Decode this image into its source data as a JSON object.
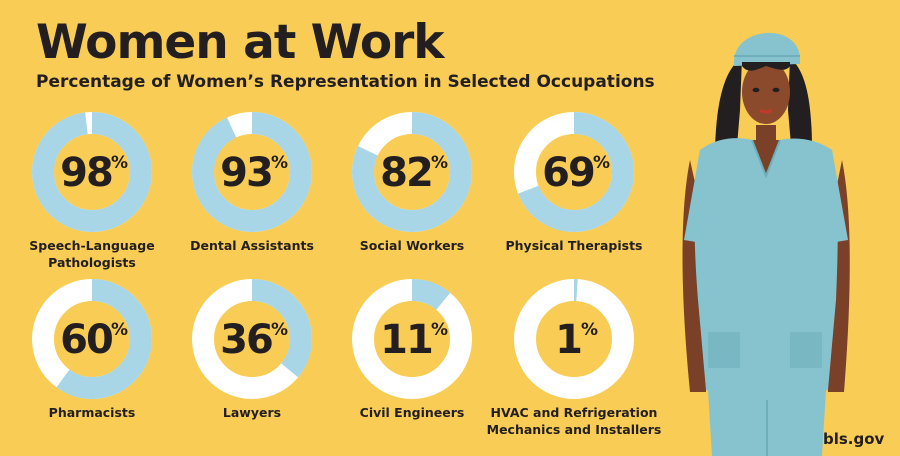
{
  "header": {
    "title": "Women at Work",
    "subtitle": "Percentage of Women’s Representation in Selected Occupations"
  },
  "chart_data": {
    "type": "donut",
    "title": "Women at Work",
    "subtitle": "Percentage of Women’s Representation in Selected Occupations",
    "unit": "%",
    "categories": [
      "Speech-Language Pathologists",
      "Dental Assistants",
      "Social Workers",
      "Physical Therapists",
      "Pharmacists",
      "Lawyers",
      "Civil Engineers",
      "HVAC and Refrigeration Mechanics and Installers"
    ],
    "label_lines": [
      [
        "Speech-Language",
        "Pathologists"
      ],
      [
        "Dental Assistants"
      ],
      [
        "Social Workers"
      ],
      [
        "Physical Therapists"
      ],
      [
        "Pharmacists"
      ],
      [
        "Lawyers"
      ],
      [
        "Civil Engineers"
      ],
      [
        "HVAC and Refrigeration",
        "Mechanics and Installers"
      ]
    ],
    "values": [
      98,
      93,
      82,
      69,
      60,
      36,
      11,
      1
    ],
    "ylim": [
      0,
      100
    ],
    "colors": {
      "filled": "#A8D6E6",
      "remainder": "#FFFFFF",
      "background": "#F8CC55",
      "text": "#231F20"
    }
  },
  "footer": {
    "credit": "bls.gov"
  }
}
